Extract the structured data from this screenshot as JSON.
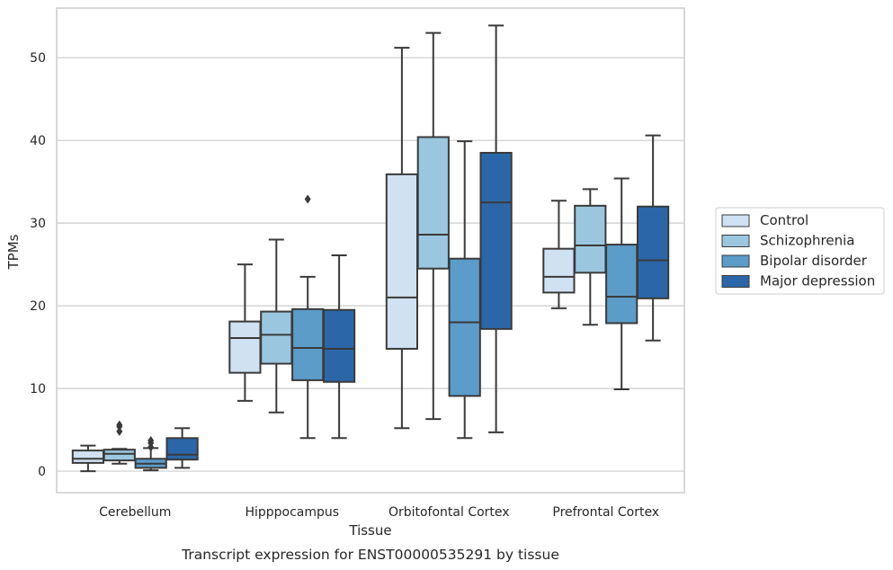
{
  "chart_data": {
    "type": "box",
    "title": "",
    "caption": "Transcript expression for ENST00000535291 by tissue",
    "xlabel": "Tissue",
    "ylabel": "TPMs",
    "ylim": [
      -2.6,
      56
    ],
    "yticks": [
      0,
      10,
      20,
      30,
      40,
      50
    ],
    "grid": "horizontal",
    "legend_position": "right",
    "categories": [
      "Cerebellum",
      "Hipppocampus",
      "Orbitofontal Cortex",
      "Prefrontal Cortex"
    ],
    "series": [
      {
        "name": "Control",
        "color": "#d0e1f1",
        "boxes": [
          {
            "whisker_low": 0.0,
            "q1": 1.0,
            "median": 1.5,
            "q3": 2.5,
            "whisker_high": 3.1,
            "outliers": []
          },
          {
            "whisker_low": 8.5,
            "q1": 11.9,
            "median": 16.1,
            "q3": 18.1,
            "whisker_high": 25.0,
            "outliers": []
          },
          {
            "whisker_low": 5.2,
            "q1": 14.8,
            "median": 21.0,
            "q3": 35.9,
            "whisker_high": 51.2,
            "outliers": []
          },
          {
            "whisker_low": 19.7,
            "q1": 21.6,
            "median": 23.5,
            "q3": 26.9,
            "whisker_high": 32.7,
            "outliers": []
          }
        ]
      },
      {
        "name": "Schizophrenia",
        "color": "#9ac7df",
        "boxes": [
          {
            "whisker_low": 0.9,
            "q1": 1.3,
            "median": 2.1,
            "q3": 2.6,
            "whisker_high": 2.7,
            "outliers": [
              4.8,
              5.4,
              5.6
            ]
          },
          {
            "whisker_low": 7.1,
            "q1": 13.0,
            "median": 16.5,
            "q3": 19.3,
            "whisker_high": 28.0,
            "outliers": []
          },
          {
            "whisker_low": 6.3,
            "q1": 24.5,
            "median": 28.6,
            "q3": 40.4,
            "whisker_high": 53.0,
            "outliers": []
          },
          {
            "whisker_low": 17.7,
            "q1": 24.0,
            "median": 27.3,
            "q3": 32.1,
            "whisker_high": 34.1,
            "outliers": []
          }
        ]
      },
      {
        "name": "Bipolar disorder",
        "color": "#5b9cc9",
        "boxes": [
          {
            "whisker_low": 0.1,
            "q1": 0.4,
            "median": 0.9,
            "q3": 1.5,
            "whisker_high": 2.8,
            "outliers": [
              2.9,
              3.4,
              3.7
            ]
          },
          {
            "whisker_low": 4.0,
            "q1": 11.0,
            "median": 14.9,
            "q3": 19.6,
            "whisker_high": 23.5,
            "outliers": [
              32.9
            ]
          },
          {
            "whisker_low": 4.0,
            "q1": 9.1,
            "median": 18.0,
            "q3": 25.7,
            "whisker_high": 39.9,
            "outliers": []
          },
          {
            "whisker_low": 9.9,
            "q1": 17.9,
            "median": 21.1,
            "q3": 27.4,
            "whisker_high": 35.4,
            "outliers": []
          }
        ]
      },
      {
        "name": "Major depression",
        "color": "#2b67a8",
        "boxes": [
          {
            "whisker_low": 0.4,
            "q1": 1.4,
            "median": 2.0,
            "q3": 4.0,
            "whisker_high": 5.2,
            "outliers": []
          },
          {
            "whisker_low": 4.0,
            "q1": 10.8,
            "median": 14.8,
            "q3": 19.5,
            "whisker_high": 26.1,
            "outliers": []
          },
          {
            "whisker_low": 4.7,
            "q1": 17.2,
            "median": 32.5,
            "q3": 38.5,
            "whisker_high": 53.9,
            "outliers": []
          },
          {
            "whisker_low": 15.8,
            "q1": 20.9,
            "median": 25.5,
            "q3": 32.0,
            "whisker_high": 40.6,
            "outliers": []
          }
        ]
      }
    ]
  }
}
